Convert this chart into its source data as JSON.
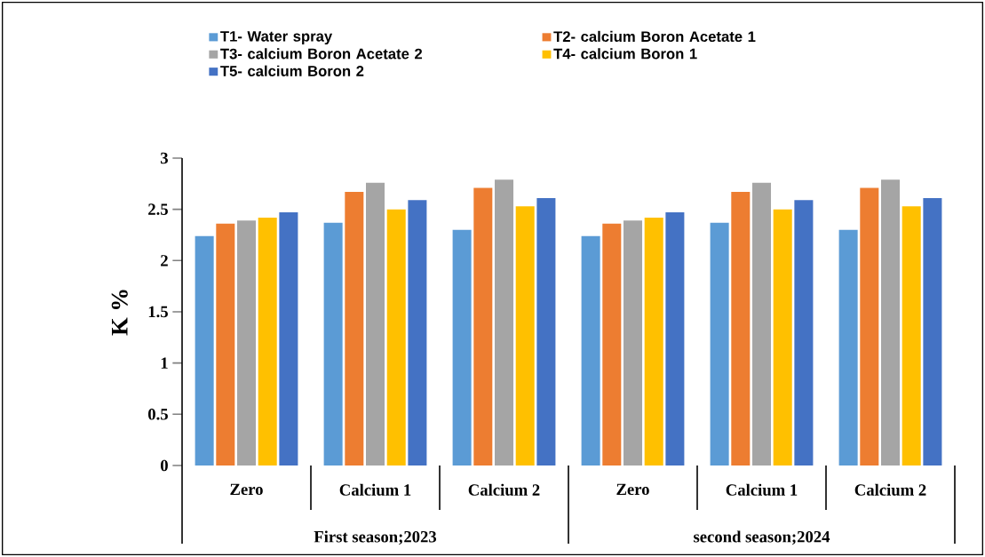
{
  "chart_data": {
    "type": "bar",
    "ylabel": "K %",
    "categories": [
      "Zero",
      "Calcium 1",
      "Calcium 2",
      "Zero",
      "Calcium 1",
      "Calcium 2"
    ],
    "series": [
      {
        "name": "T1- Water spray",
        "color": "#5b9bd5",
        "values": [
          2.24,
          2.37,
          2.3,
          2.24,
          2.37,
          2.3
        ]
      },
      {
        "name": "T2- calcium Boron Acetate 1",
        "color": "#ed7d31",
        "values": [
          2.36,
          2.67,
          2.71,
          2.36,
          2.67,
          2.71
        ]
      },
      {
        "name": "T3- calcium Boron Acetate 2",
        "color": "#a5a5a5",
        "values": [
          2.39,
          2.76,
          2.79,
          2.39,
          2.76,
          2.79
        ]
      },
      {
        "name": "T4- calcium Boron 1",
        "color": "#ffc000",
        "values": [
          2.42,
          2.5,
          2.53,
          2.42,
          2.5,
          2.53
        ]
      },
      {
        "name": "T5- calcium Boron 2",
        "color": "#4472c4",
        "values": [
          2.47,
          2.59,
          2.61,
          2.47,
          2.59,
          2.61
        ]
      }
    ],
    "ylim": [
      0,
      3
    ],
    "yticks": [
      0,
      0.5,
      1,
      1.5,
      2,
      2.5,
      3
    ],
    "annotations": [
      "First season;2023",
      "second season;2024"
    ],
    "legend": "top left",
    "grid": false
  }
}
